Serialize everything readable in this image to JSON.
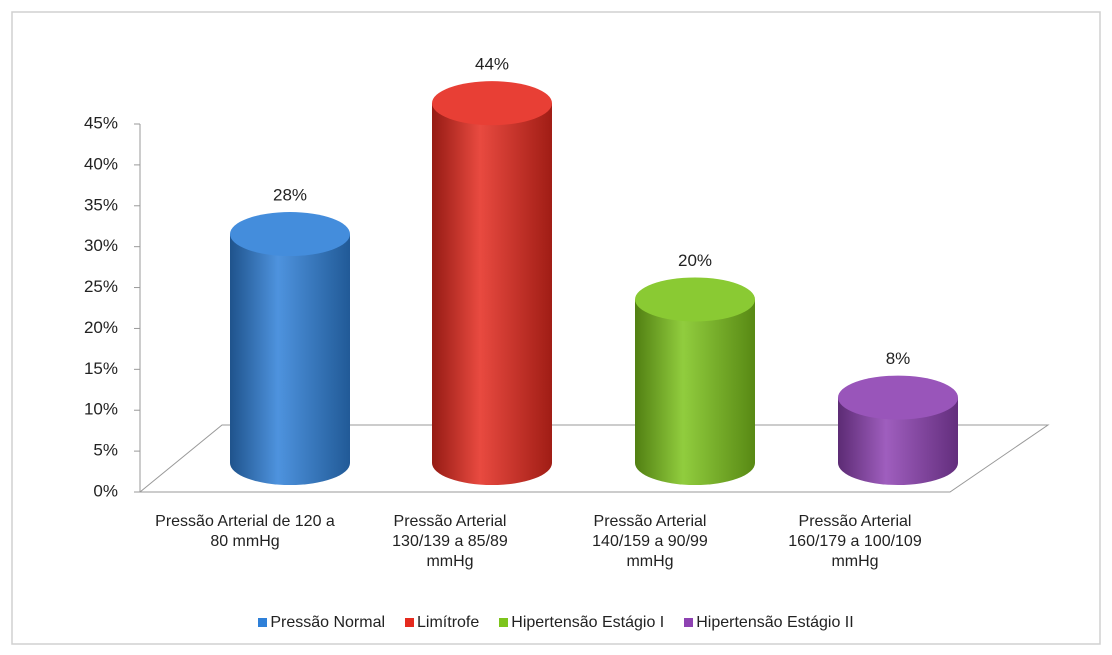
{
  "chart_data": {
    "type": "cylinder",
    "categories": [
      "Pressão Arterial de 120 a 80 mmHg",
      "Pressão Arterial 130/139 a 85/89 mmHg",
      "Pressão Arterial 140/159 a 90/99 mmHg",
      "Pressão Arterial 160/179 a 100/109 mmHg"
    ],
    "values": [
      28,
      44,
      20,
      8
    ],
    "value_labels": [
      "28%",
      "44%",
      "20%",
      "8%"
    ],
    "colors": [
      "#2f80d8",
      "#e52a1e",
      "#7dc41c",
      "#8e42b2"
    ],
    "legend": [
      "Pressão Normal",
      "Limítrofe",
      "Hipertensão Estágio I",
      "Hipertensão Estágio II"
    ],
    "legend_position": "bottom",
    "ylim": [
      0,
      45
    ],
    "yticks": [
      {
        "value": 0,
        "label": "0%"
      },
      {
        "value": 5,
        "label": "5%"
      },
      {
        "value": 10,
        "label": "10%"
      },
      {
        "value": 15,
        "label": "15%"
      },
      {
        "value": 20,
        "label": "20%"
      },
      {
        "value": 25,
        "label": "25%"
      },
      {
        "value": 30,
        "label": "30%"
      },
      {
        "value": 35,
        "label": "35%"
      },
      {
        "value": 40,
        "label": "40%"
      },
      {
        "value": 45,
        "label": "45%"
      }
    ]
  }
}
